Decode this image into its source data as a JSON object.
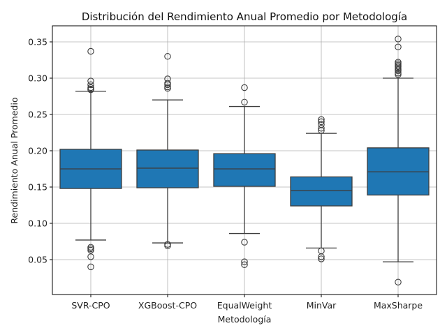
{
  "chart_data": {
    "type": "box",
    "title": "Distribución del Rendimiento Anual Promedio por Metodología",
    "xlabel": "Metodología",
    "ylabel": "Rendimiento Anual Promedio",
    "ylim": [
      0.02,
      0.37
    ],
    "yticks": [
      0.05,
      0.1,
      0.15,
      0.2,
      0.25,
      0.3,
      0.35
    ],
    "ytick_labels": [
      "0.05",
      "0.10",
      "0.15",
      "0.20",
      "0.25",
      "0.30",
      "0.35"
    ],
    "grid": true,
    "box_color": "#1f77b4",
    "categories": [
      "SVR-CPO",
      "XGBoost-CPO",
      "EqualWeight",
      "MinVar",
      "MaxSharpe"
    ],
    "boxes": [
      {
        "name": "SVR-CPO",
        "whisker_low": 0.077,
        "q1": 0.148,
        "median": 0.175,
        "q3": 0.202,
        "whisker_high": 0.282,
        "outliers": [
          0.284,
          0.285,
          0.287,
          0.291,
          0.296,
          0.337,
          0.067,
          0.065,
          0.063,
          0.054,
          0.04
        ]
      },
      {
        "name": "XGBoost-CPO",
        "whisker_low": 0.073,
        "q1": 0.149,
        "median": 0.176,
        "q3": 0.201,
        "whisker_high": 0.27,
        "outliers": [
          0.286,
          0.288,
          0.291,
          0.293,
          0.299,
          0.33,
          0.071,
          0.069
        ]
      },
      {
        "name": "EqualWeight",
        "whisker_low": 0.086,
        "q1": 0.151,
        "median": 0.175,
        "q3": 0.196,
        "whisker_high": 0.261,
        "outliers": [
          0.267,
          0.287,
          0.074,
          0.047,
          0.043
        ]
      },
      {
        "name": "MinVar",
        "whisker_low": 0.066,
        "q1": 0.124,
        "median": 0.145,
        "q3": 0.164,
        "whisker_high": 0.224,
        "outliers": [
          0.228,
          0.231,
          0.236,
          0.24,
          0.243,
          0.062,
          0.054,
          0.051
        ]
      },
      {
        "name": "MaxSharpe",
        "whisker_low": 0.047,
        "q1": 0.139,
        "median": 0.171,
        "q3": 0.204,
        "whisker_high": 0.3,
        "outliers": [
          0.305,
          0.307,
          0.31,
          0.312,
          0.314,
          0.316,
          0.318,
          0.32,
          0.322,
          0.343,
          0.354,
          0.019
        ]
      }
    ]
  }
}
